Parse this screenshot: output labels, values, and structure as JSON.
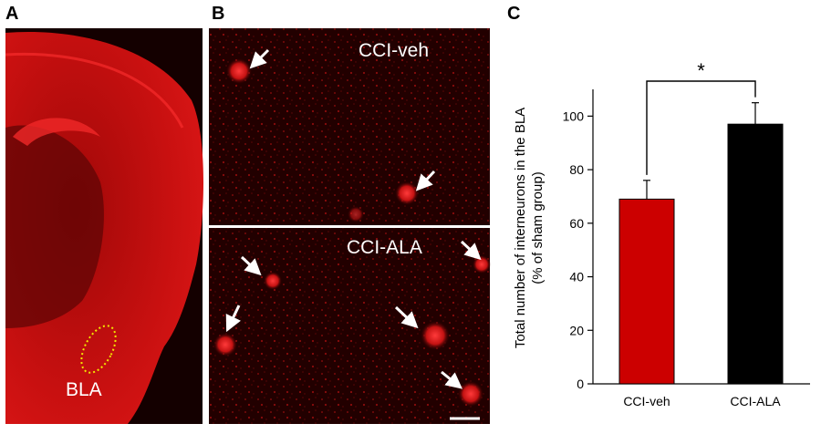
{
  "panels": {
    "a": {
      "letter": "A",
      "region_label": "BLA"
    },
    "b": {
      "letter": "B",
      "top_label": "CCI-veh",
      "bottom_label": "CCI-ALA"
    },
    "c": {
      "letter": "C"
    }
  },
  "colors": {
    "tissue_red": "#d41414",
    "bar_veh": "#cc0000",
    "bar_ala": "#000000",
    "arrow": "#ffffff",
    "bla_outline": "#f2e600"
  },
  "chart_data": {
    "type": "bar",
    "categories": [
      "CCI-veh",
      "CCI-ALA"
    ],
    "values": [
      69,
      97
    ],
    "errors": [
      7,
      8
    ],
    "ylabel": "Total number of interneurons in the BLA (% of sham group)",
    "ylabel_lines": [
      "Total number of interneurons in the BLA",
      "(% of sham group)"
    ],
    "ylim": [
      0,
      110
    ],
    "yticks": [
      0,
      20,
      40,
      60,
      80,
      100
    ],
    "significance": "*",
    "grid": false
  }
}
